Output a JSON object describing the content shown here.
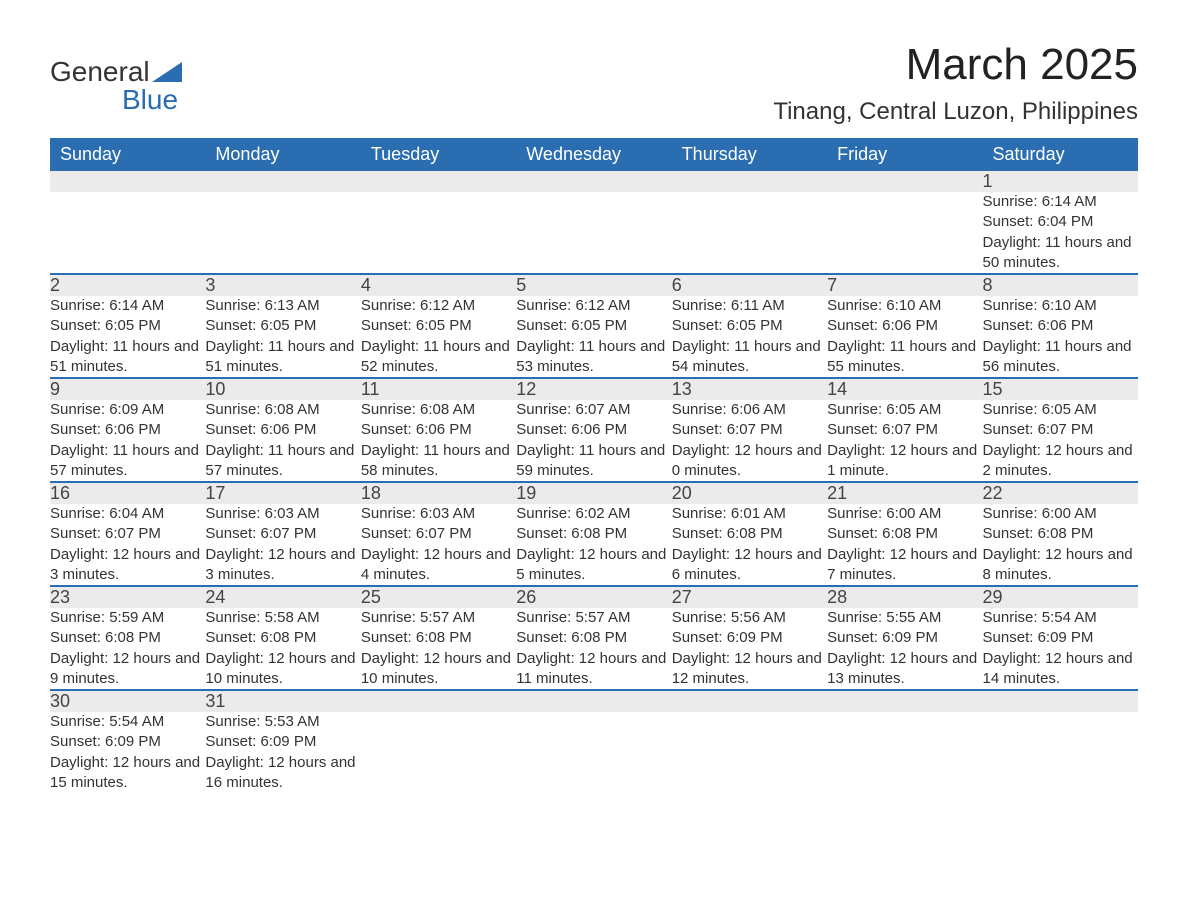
{
  "logo": {
    "text_general": "General",
    "text_blue": "Blue"
  },
  "title": "March 2025",
  "location": "Tinang, Central Luzon, Philippines",
  "colors": {
    "header_bg": "#2a6db0",
    "header_text": "#ffffff",
    "daynum_bg": "#ebebeb",
    "row_border": "#2a6db0",
    "body_text": "#333333",
    "page_bg": "#ffffff"
  },
  "fonts": {
    "title_size_pt": 44,
    "location_size_pt": 24,
    "header_size_pt": 18,
    "body_size_pt": 15
  },
  "weekdays": [
    "Sunday",
    "Monday",
    "Tuesday",
    "Wednesday",
    "Thursday",
    "Friday",
    "Saturday"
  ],
  "weeks": [
    [
      null,
      null,
      null,
      null,
      null,
      null,
      {
        "day": "1",
        "sunrise": "Sunrise: 6:14 AM",
        "sunset": "Sunset: 6:04 PM",
        "daylight": "Daylight: 11 hours and 50 minutes."
      }
    ],
    [
      {
        "day": "2",
        "sunrise": "Sunrise: 6:14 AM",
        "sunset": "Sunset: 6:05 PM",
        "daylight": "Daylight: 11 hours and 51 minutes."
      },
      {
        "day": "3",
        "sunrise": "Sunrise: 6:13 AM",
        "sunset": "Sunset: 6:05 PM",
        "daylight": "Daylight: 11 hours and 51 minutes."
      },
      {
        "day": "4",
        "sunrise": "Sunrise: 6:12 AM",
        "sunset": "Sunset: 6:05 PM",
        "daylight": "Daylight: 11 hours and 52 minutes."
      },
      {
        "day": "5",
        "sunrise": "Sunrise: 6:12 AM",
        "sunset": "Sunset: 6:05 PM",
        "daylight": "Daylight: 11 hours and 53 minutes."
      },
      {
        "day": "6",
        "sunrise": "Sunrise: 6:11 AM",
        "sunset": "Sunset: 6:05 PM",
        "daylight": "Daylight: 11 hours and 54 minutes."
      },
      {
        "day": "7",
        "sunrise": "Sunrise: 6:10 AM",
        "sunset": "Sunset: 6:06 PM",
        "daylight": "Daylight: 11 hours and 55 minutes."
      },
      {
        "day": "8",
        "sunrise": "Sunrise: 6:10 AM",
        "sunset": "Sunset: 6:06 PM",
        "daylight": "Daylight: 11 hours and 56 minutes."
      }
    ],
    [
      {
        "day": "9",
        "sunrise": "Sunrise: 6:09 AM",
        "sunset": "Sunset: 6:06 PM",
        "daylight": "Daylight: 11 hours and 57 minutes."
      },
      {
        "day": "10",
        "sunrise": "Sunrise: 6:08 AM",
        "sunset": "Sunset: 6:06 PM",
        "daylight": "Daylight: 11 hours and 57 minutes."
      },
      {
        "day": "11",
        "sunrise": "Sunrise: 6:08 AM",
        "sunset": "Sunset: 6:06 PM",
        "daylight": "Daylight: 11 hours and 58 minutes."
      },
      {
        "day": "12",
        "sunrise": "Sunrise: 6:07 AM",
        "sunset": "Sunset: 6:06 PM",
        "daylight": "Daylight: 11 hours and 59 minutes."
      },
      {
        "day": "13",
        "sunrise": "Sunrise: 6:06 AM",
        "sunset": "Sunset: 6:07 PM",
        "daylight": "Daylight: 12 hours and 0 minutes."
      },
      {
        "day": "14",
        "sunrise": "Sunrise: 6:05 AM",
        "sunset": "Sunset: 6:07 PM",
        "daylight": "Daylight: 12 hours and 1 minute."
      },
      {
        "day": "15",
        "sunrise": "Sunrise: 6:05 AM",
        "sunset": "Sunset: 6:07 PM",
        "daylight": "Daylight: 12 hours and 2 minutes."
      }
    ],
    [
      {
        "day": "16",
        "sunrise": "Sunrise: 6:04 AM",
        "sunset": "Sunset: 6:07 PM",
        "daylight": "Daylight: 12 hours and 3 minutes."
      },
      {
        "day": "17",
        "sunrise": "Sunrise: 6:03 AM",
        "sunset": "Sunset: 6:07 PM",
        "daylight": "Daylight: 12 hours and 3 minutes."
      },
      {
        "day": "18",
        "sunrise": "Sunrise: 6:03 AM",
        "sunset": "Sunset: 6:07 PM",
        "daylight": "Daylight: 12 hours and 4 minutes."
      },
      {
        "day": "19",
        "sunrise": "Sunrise: 6:02 AM",
        "sunset": "Sunset: 6:08 PM",
        "daylight": "Daylight: 12 hours and 5 minutes."
      },
      {
        "day": "20",
        "sunrise": "Sunrise: 6:01 AM",
        "sunset": "Sunset: 6:08 PM",
        "daylight": "Daylight: 12 hours and 6 minutes."
      },
      {
        "day": "21",
        "sunrise": "Sunrise: 6:00 AM",
        "sunset": "Sunset: 6:08 PM",
        "daylight": "Daylight: 12 hours and 7 minutes."
      },
      {
        "day": "22",
        "sunrise": "Sunrise: 6:00 AM",
        "sunset": "Sunset: 6:08 PM",
        "daylight": "Daylight: 12 hours and 8 minutes."
      }
    ],
    [
      {
        "day": "23",
        "sunrise": "Sunrise: 5:59 AM",
        "sunset": "Sunset: 6:08 PM",
        "daylight": "Daylight: 12 hours and 9 minutes."
      },
      {
        "day": "24",
        "sunrise": "Sunrise: 5:58 AM",
        "sunset": "Sunset: 6:08 PM",
        "daylight": "Daylight: 12 hours and 10 minutes."
      },
      {
        "day": "25",
        "sunrise": "Sunrise: 5:57 AM",
        "sunset": "Sunset: 6:08 PM",
        "daylight": "Daylight: 12 hours and 10 minutes."
      },
      {
        "day": "26",
        "sunrise": "Sunrise: 5:57 AM",
        "sunset": "Sunset: 6:08 PM",
        "daylight": "Daylight: 12 hours and 11 minutes."
      },
      {
        "day": "27",
        "sunrise": "Sunrise: 5:56 AM",
        "sunset": "Sunset: 6:09 PM",
        "daylight": "Daylight: 12 hours and 12 minutes."
      },
      {
        "day": "28",
        "sunrise": "Sunrise: 5:55 AM",
        "sunset": "Sunset: 6:09 PM",
        "daylight": "Daylight: 12 hours and 13 minutes."
      },
      {
        "day": "29",
        "sunrise": "Sunrise: 5:54 AM",
        "sunset": "Sunset: 6:09 PM",
        "daylight": "Daylight: 12 hours and 14 minutes."
      }
    ],
    [
      {
        "day": "30",
        "sunrise": "Sunrise: 5:54 AM",
        "sunset": "Sunset: 6:09 PM",
        "daylight": "Daylight: 12 hours and 15 minutes."
      },
      {
        "day": "31",
        "sunrise": "Sunrise: 5:53 AM",
        "sunset": "Sunset: 6:09 PM",
        "daylight": "Daylight: 12 hours and 16 minutes."
      },
      null,
      null,
      null,
      null,
      null
    ]
  ]
}
